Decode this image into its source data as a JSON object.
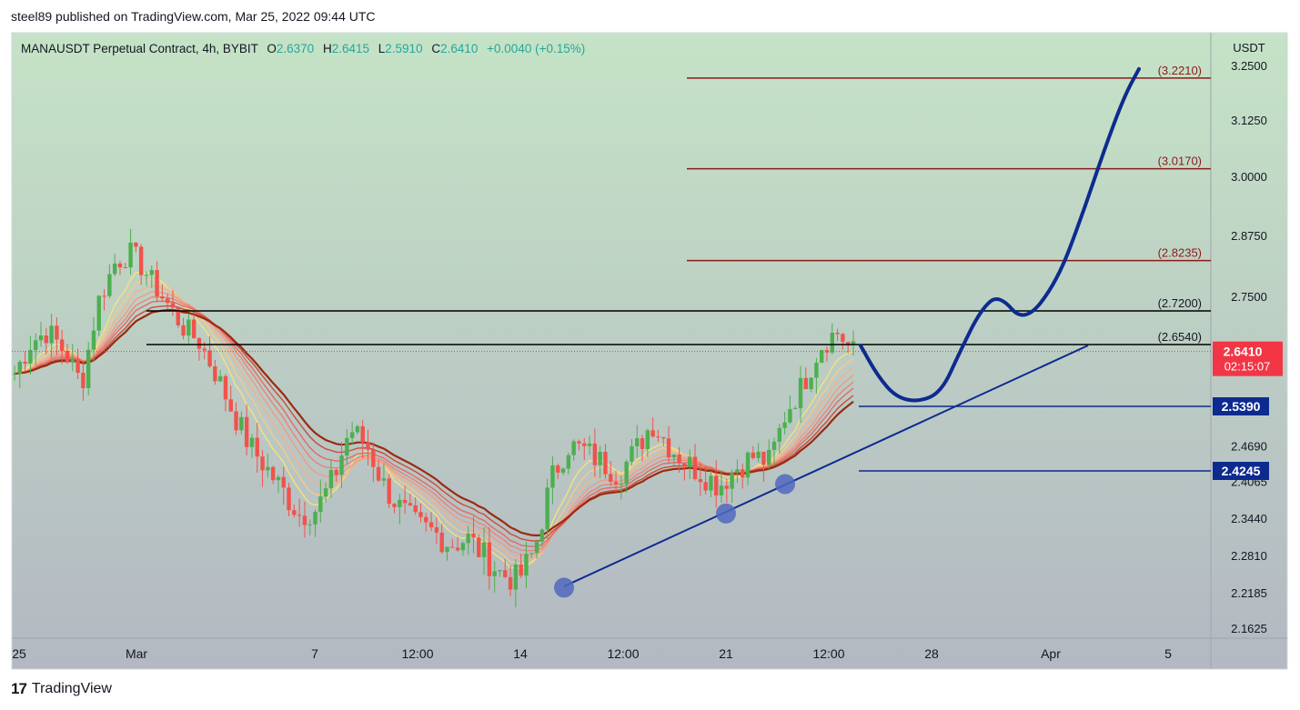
{
  "header": {
    "published": "steel89 published on TradingView.com, Mar 25, 2022 09:44 UTC"
  },
  "footer": {
    "brand": "TradingView"
  },
  "legend": {
    "symbol": "MANAUSDT Perpetual Contract, 4h, BYBIT",
    "o_label": "O",
    "o_value": "2.6370",
    "h_label": "H",
    "h_value": "2.6415",
    "l_label": "L",
    "l_value": "2.5910",
    "c_label": "C",
    "c_value": "2.6410",
    "change": "+0.0040 (+0.15%)"
  },
  "colors": {
    "bg_top": "#c5e3c6",
    "bg_bottom": "#b3b8c2",
    "up": "#4caf50",
    "down": "#f0534b",
    "fib_line": "#8b1a1a",
    "level_line": "#000000",
    "blue": "#0d2b8f",
    "dot": "#5068c0",
    "price_tag": "#f23645",
    "level_tag": "#0d2b8f"
  },
  "chart_data": {
    "type": "candlestick",
    "title": "MANAUSDT Perpetual Contract, 4h, BYBIT",
    "currency": "USDT",
    "ylim": [
      2.12,
      3.32
    ],
    "y_ticks": [
      "3.2500",
      "3.1250",
      "3.0000",
      "2.8750",
      "2.7500",
      "2.4690",
      "2.4065",
      "2.3440",
      "2.2810",
      "2.2185",
      "2.1625"
    ],
    "x_ticks": [
      "25",
      "Mar",
      "7",
      "12:00",
      "14",
      "12:00",
      "21",
      "12:00",
      "28",
      "Apr",
      "5"
    ],
    "last_price": "2.6410",
    "countdown": "02:15:07",
    "horizontal_levels": [
      {
        "label": "(3.2210)",
        "value": 3.221,
        "kind": "fib"
      },
      {
        "label": "(3.0170)",
        "value": 3.017,
        "kind": "fib"
      },
      {
        "label": "(2.8235)",
        "value": 2.8235,
        "kind": "fib"
      },
      {
        "label": "(2.7200)",
        "value": 2.72,
        "kind": "level"
      },
      {
        "label": "(2.6540)",
        "value": 2.654,
        "kind": "level"
      }
    ],
    "support_levels": [
      {
        "label": "2.5390",
        "value": 2.539
      },
      {
        "label": "2.4245",
        "value": 2.4245
      }
    ],
    "trendline_touches": [
      2.227,
      2.352,
      2.402
    ],
    "projection": [
      2.652,
      2.595,
      2.556,
      2.547,
      2.566,
      2.64,
      2.722,
      2.755,
      2.695,
      2.78,
      2.92,
      3.06,
      3.18,
      3.242
    ],
    "price_path": [
      2.6,
      2.66,
      2.68,
      2.64,
      2.58,
      2.74,
      2.82,
      2.84,
      2.79,
      2.74,
      2.69,
      2.66,
      2.6,
      2.53,
      2.47,
      2.43,
      2.39,
      2.35,
      2.36,
      2.41,
      2.5,
      2.47,
      2.4,
      2.36,
      2.33,
      2.32,
      2.3,
      2.31,
      2.28,
      2.25,
      2.24,
      2.29,
      2.41,
      2.47,
      2.46,
      2.44,
      2.42,
      2.46,
      2.51,
      2.47,
      2.44,
      2.42,
      2.4,
      2.43,
      2.45,
      2.44,
      2.53,
      2.58,
      2.65,
      2.68,
      2.64
    ]
  }
}
